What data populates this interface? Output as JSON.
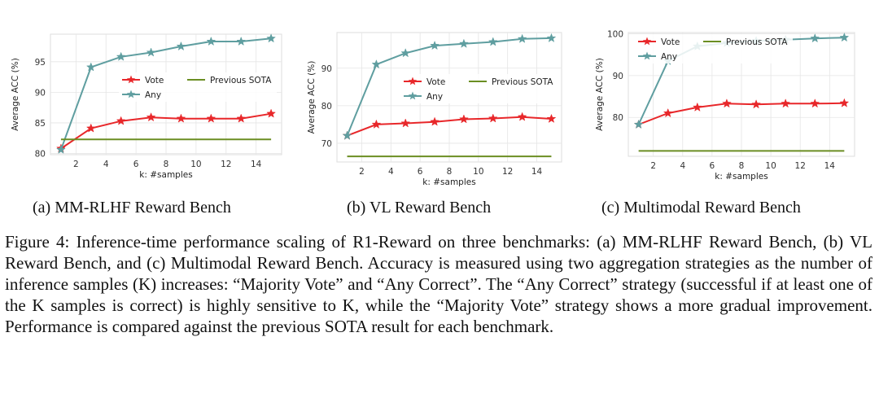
{
  "chart_data": [
    {
      "type": "line",
      "x": [
        1,
        3,
        5,
        7,
        9,
        11,
        13,
        15
      ],
      "series": [
        {
          "name": "Vote",
          "color": "#e8272a",
          "marker": "star",
          "values": [
            80.8,
            84.1,
            85.3,
            85.9,
            85.7,
            85.7,
            85.7,
            86.5
          ]
        },
        {
          "name": "Any",
          "color": "#5f9ea0",
          "marker": "star",
          "values": [
            80.6,
            94.1,
            95.8,
            96.5,
            97.5,
            98.3,
            98.3,
            98.8
          ]
        },
        {
          "name": "Previous SOTA",
          "color": "#6b8e23",
          "marker": "none",
          "values": [
            82.3,
            82.3,
            82.3,
            82.3,
            82.3,
            82.3,
            82.3,
            82.3
          ]
        }
      ],
      "xlabel": "k: #samples",
      "ylabel": "Average ACC (%)",
      "xlim": [
        0.3,
        15.7
      ],
      "ylim": [
        79.8,
        99.5
      ],
      "xticks": [
        2,
        4,
        6,
        8,
        10,
        12,
        14
      ],
      "yticks": [
        80,
        85,
        90,
        95
      ],
      "grid": true,
      "legend": "center",
      "legend_columns": 2
    },
    {
      "type": "line",
      "x": [
        1,
        3,
        5,
        7,
        9,
        11,
        13,
        15
      ],
      "series": [
        {
          "name": "Vote",
          "color": "#e8272a",
          "marker": "star",
          "values": [
            72.0,
            75.0,
            75.3,
            75.7,
            76.4,
            76.6,
            77.0,
            76.5
          ]
        },
        {
          "name": "Any",
          "color": "#5f9ea0",
          "marker": "star",
          "values": [
            72.0,
            91.0,
            94.0,
            96.0,
            96.5,
            97.0,
            97.8,
            98.0
          ]
        },
        {
          "name": "Previous SOTA",
          "color": "#6b8e23",
          "marker": "none",
          "values": [
            66.5,
            66.5,
            66.5,
            66.5,
            66.5,
            66.5,
            66.5,
            66.5
          ]
        }
      ],
      "xlabel": "k: #samples",
      "ylabel": "Average ACC (%)",
      "xlim": [
        0.3,
        15.7
      ],
      "ylim": [
        65.0,
        99.5
      ],
      "xticks": [
        2,
        4,
        6,
        8,
        10,
        12,
        14
      ],
      "yticks": [
        70,
        80,
        90
      ],
      "grid": true,
      "legend": "center",
      "legend_columns": 2
    },
    {
      "type": "line",
      "x": [
        1,
        3,
        5,
        7,
        9,
        11,
        13,
        15
      ],
      "series": [
        {
          "name": "Vote",
          "color": "#e8272a",
          "marker": "star",
          "values": [
            78.3,
            81.0,
            82.4,
            83.3,
            83.1,
            83.3,
            83.3,
            83.4
          ]
        },
        {
          "name": "Any",
          "color": "#5f9ea0",
          "marker": "star",
          "values": [
            78.3,
            93.5,
            97.0,
            97.8,
            98.3,
            98.6,
            98.9,
            99.1
          ]
        },
        {
          "name": "Previous SOTA",
          "color": "#6b8e23",
          "marker": "none",
          "values": [
            72.0,
            72.0,
            72.0,
            72.0,
            72.0,
            72.0,
            72.0,
            72.0
          ]
        }
      ],
      "xlabel": "k: #samples",
      "ylabel": "Average ACC (%)",
      "xlim": [
        0.3,
        15.7
      ],
      "ylim": [
        70.7,
        100.3
      ],
      "xticks": [
        2,
        4,
        6,
        8,
        10,
        12,
        14
      ],
      "yticks": [
        80,
        90,
        100
      ],
      "grid": true,
      "legend": "upper-left",
      "legend_columns": 2
    }
  ],
  "subcaptions": [
    "(a)  MM-RLHF Reward Bench",
    "(b)  VL Reward Bench",
    "(c)  Multimodal Reward Bench"
  ],
  "figure_caption": "Figure 4: Inference-time performance scaling of R1-Reward on three benchmarks: (a) MM-RLHF Reward Bench, (b) VL Reward Bench, and (c) Multimodal Reward Bench. Accuracy is measured using two aggregation strategies as the number of inference samples (K) increases: “Majority Vote” and “Any Correct”. The “Any Correct” strategy (successful if at least one of the K samples is correct) is highly sensitive to K, while the “Majority Vote” strategy shows a more gradual improvement. Performance is compared against the previous SOTA result for each benchmark."
}
